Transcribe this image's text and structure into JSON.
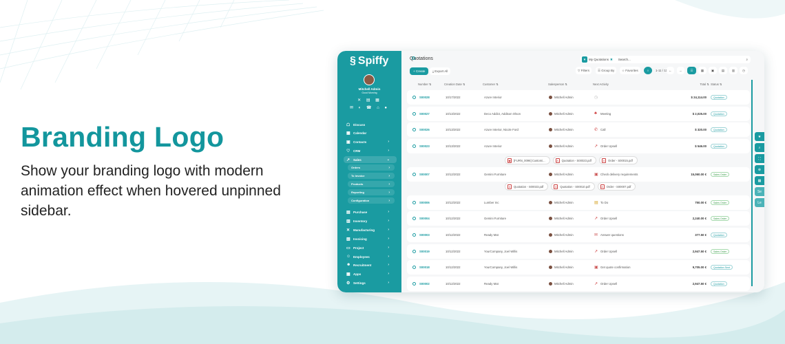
{
  "hero": {
    "title": "Branding Logo",
    "text": "Show your branding logo with modern animation effect when hovered unpinned sidebar."
  },
  "colors": {
    "brand": "#1a9ba1",
    "heading": "#13969d"
  },
  "sidebar": {
    "logo": "Spiffy",
    "user": "Mitchell Admin",
    "greeting": "Good Morning",
    "items": [
      {
        "label": "Discuss",
        "icon": "chat-icon",
        "chevron": false
      },
      {
        "label": "Calendar",
        "icon": "calendar-icon",
        "chevron": false
      },
      {
        "label": "Contacts",
        "icon": "contacts-icon",
        "chevron": true
      },
      {
        "label": "CRM",
        "icon": "handshake-icon",
        "chevron": true
      },
      {
        "label": "Sales",
        "icon": "chart-icon",
        "chevron": true,
        "expanded": true
      },
      {
        "label": "Purchase",
        "icon": "cart-icon",
        "chevron": true
      },
      {
        "label": "Inventory",
        "icon": "box-icon",
        "chevron": true
      },
      {
        "label": "Manufacturing",
        "icon": "tools-icon",
        "chevron": true
      },
      {
        "label": "Invoicing",
        "icon": "invoice-icon",
        "chevron": true
      },
      {
        "label": "Project",
        "icon": "folder-icon",
        "chevron": true
      },
      {
        "label": "Employees",
        "icon": "users-icon",
        "chevron": true
      },
      {
        "label": "Recruitment",
        "icon": "user-search-icon",
        "chevron": true
      },
      {
        "label": "Apps",
        "icon": "apps-icon",
        "chevron": true
      },
      {
        "label": "Settings",
        "icon": "gear-icon",
        "chevron": true
      }
    ],
    "sales_sub": [
      "Orders",
      "To Invoice",
      "Products",
      "Reporting",
      "Configuration"
    ]
  },
  "main": {
    "title": "Quotations",
    "create": "+ Create",
    "export": "Export All",
    "search": {
      "facet": "My Quotations",
      "placeholder": "Search..."
    },
    "toolbar": {
      "filters": "Filters",
      "group_by": "Group By",
      "favorites": "Favorites",
      "pager": "1-11 / 11"
    },
    "columns": [
      "Number",
      "Creation Date",
      "Customer",
      "Salesperson",
      "Next Activity",
      "Total",
      "Status"
    ],
    "rows": [
      {
        "number": "S00028",
        "date": "10/17/2022",
        "customer": "Azure Interior",
        "salesperson": "Mitchell Admin",
        "activity": "",
        "activity_icon": "clock-icon",
        "total": "$ 24,114.00",
        "status": "Quotation"
      },
      {
        "number": "S00027",
        "date": "10/13/2022",
        "customer": "Deco Addict, Addison Olson",
        "salesperson": "Mitchell Admin",
        "activity": "Meeting",
        "activity_icon": "people-icon",
        "total": "$ 2,025.00",
        "status": "Quotation"
      },
      {
        "number": "S00026",
        "date": "10/13/2022",
        "customer": "Azure Interior, Nicole Ford",
        "salesperson": "Mitchell Admin",
        "activity": "Call",
        "activity_icon": "phone-icon",
        "total": "$ 320.00",
        "status": "Quotation"
      },
      {
        "number": "S00023",
        "date": "10/13/2022",
        "customer": "Azure Interior",
        "salesperson": "Mitchell Admin",
        "activity": "Order Upsell",
        "activity_icon": "upsell-icon",
        "total": "$ 546.00",
        "status": "Quotation"
      },
      {
        "attachments": [
          "[FURN_0096] Customi...",
          "Quotation - S00023.pdf",
          "Order - S00015.pdf"
        ]
      },
      {
        "number": "S00007",
        "date": "10/12/2022",
        "customer": "Gemini Furniture",
        "salesperson": "Mitchell Admin",
        "activity": "Check delivery requirements",
        "activity_icon": "calendar-icon",
        "total": "15,060.00 €",
        "status": "Sales Order"
      },
      {
        "attachments": [
          "Quotation - S00023.pdf",
          "Quotation - S00010.pdf",
          "Order - S00007.pdf"
        ]
      },
      {
        "number": "S00006",
        "date": "10/12/2022",
        "customer": "Lumber Inc",
        "salesperson": "Mitchell Admin",
        "activity": "To Do",
        "activity_icon": "todo-icon",
        "total": "750.00 €",
        "status": "Sales Order"
      },
      {
        "number": "S00004",
        "date": "10/12/2022",
        "customer": "Gemini Furniture",
        "salesperson": "Mitchell Admin",
        "activity": "Order Upsell",
        "activity_icon": "upsell-icon",
        "total": "2,240.00 €",
        "status": "Sales Order"
      },
      {
        "number": "S00003",
        "date": "10/12/2022",
        "customer": "Ready Mat",
        "salesperson": "Mitchell Admin",
        "activity": "Answer questions",
        "activity_icon": "mail-icon",
        "total": "377.50 €",
        "status": "Quotation"
      },
      {
        "number": "S00019",
        "date": "10/12/2022",
        "customer": "YourCompany, Joel Willis",
        "salesperson": "Mitchell Admin",
        "activity": "Order Upsell",
        "activity_icon": "upsell-icon",
        "total": "2,947.50 €",
        "status": "Sales Order"
      },
      {
        "number": "S00018",
        "date": "10/12/2022",
        "customer": "YourCompany, Joel Willis",
        "salesperson": "Mitchell Admin",
        "activity": "Get quote confirmation",
        "activity_icon": "calendar-icon",
        "total": "9,705.00 €",
        "status": "Quotation Sent"
      },
      {
        "number": "S00002",
        "date": "10/12/2022",
        "customer": "Ready Mat",
        "salesperson": "Mitchell Admin",
        "activity": "Order Upsell",
        "activity_icon": "upsell-icon",
        "total": "2,947.50 €",
        "status": "Quotation"
      }
    ]
  },
  "float_buttons": [
    "★",
    "⌕",
    "⛶",
    "⊕",
    "▦",
    "Se",
    "Le"
  ]
}
